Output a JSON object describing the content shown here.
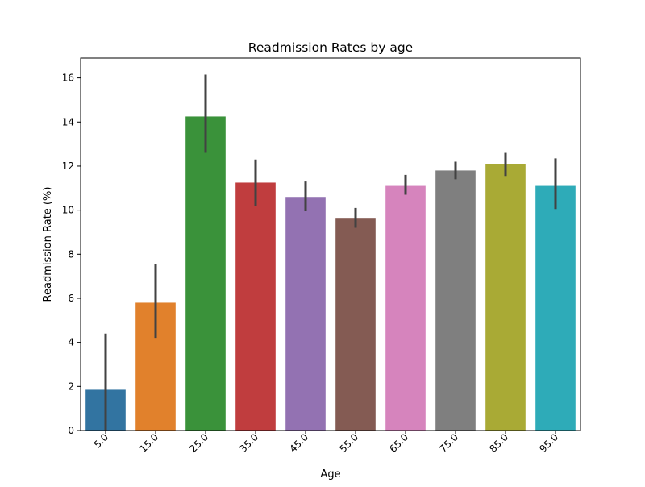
{
  "chart_data": {
    "type": "bar",
    "title": "Readmission Rates by age",
    "xlabel": "Age",
    "ylabel": "Readmission Rate (%)",
    "categories": [
      "5.0",
      "15.0",
      "25.0",
      "35.0",
      "45.0",
      "55.0",
      "65.0",
      "75.0",
      "85.0",
      "95.0"
    ],
    "values": [
      1.85,
      5.8,
      14.25,
      11.25,
      10.6,
      9.65,
      11.1,
      11.8,
      12.1,
      11.1
    ],
    "error_low": [
      0.0,
      4.2,
      12.6,
      10.2,
      9.95,
      9.2,
      10.7,
      11.4,
      11.55,
      10.05
    ],
    "error_high": [
      4.4,
      7.55,
      16.15,
      12.3,
      11.3,
      10.1,
      11.6,
      12.2,
      12.6,
      12.35
    ],
    "colors": [
      "#3274a1",
      "#e1812c",
      "#3a923a",
      "#c03d3e",
      "#9372b2",
      "#845b53",
      "#d684bd",
      "#7f7f7f",
      "#a9aa35",
      "#2eabb8"
    ],
    "error_color": "#424242",
    "ylim": [
      0,
      16.9
    ],
    "yticks": [
      0,
      2,
      4,
      6,
      8,
      10,
      12,
      14,
      16
    ],
    "grid": false,
    "legend": "none"
  }
}
